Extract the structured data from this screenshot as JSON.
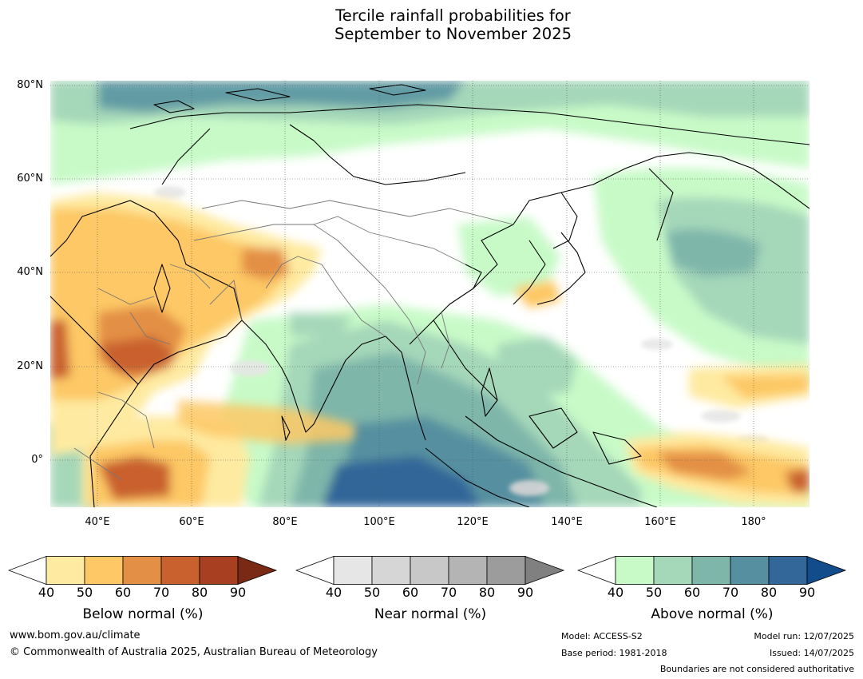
{
  "title": {
    "line1": "Tercile rainfall probabilities for",
    "line2": "September to November 2025"
  },
  "map": {
    "lat_ticks": [
      "80°N",
      "60°N",
      "40°N",
      "20°N",
      "0°"
    ],
    "lon_ticks": [
      "40°E",
      "60°E",
      "80°E",
      "100°E",
      "120°E",
      "140°E",
      "160°E",
      "180°"
    ]
  },
  "colorbars": [
    {
      "label": "Below normal (%)",
      "ticks": [
        "40",
        "50",
        "60",
        "70",
        "80",
        "90"
      ],
      "colors": [
        "#ffffff",
        "#feeaa0",
        "#fdc865",
        "#e38f45",
        "#c9612f",
        "#a83f20",
        "#7a2a14"
      ]
    },
    {
      "label": "Near normal (%)",
      "ticks": [
        "40",
        "50",
        "60",
        "70",
        "80",
        "90"
      ],
      "colors": [
        "#ffffff",
        "#e6e6e6",
        "#d6d6d6",
        "#c8c8c8",
        "#b4b4b4",
        "#9c9c9c",
        "#808080"
      ]
    },
    {
      "label": "Above normal (%)",
      "ticks": [
        "40",
        "50",
        "60",
        "70",
        "80",
        "90"
      ],
      "colors": [
        "#ffffff",
        "#c8fac8",
        "#a5d7b9",
        "#7eb6aa",
        "#5690a0",
        "#336699",
        "#124c8a"
      ]
    }
  ],
  "footer": {
    "website": "www.bom.gov.au/climate",
    "copyright": "© Commonwealth of Australia 2025, Australian Bureau of Meteorology",
    "model": "Model: ACCESS-S2",
    "base_period": "Base period: 1981-2018",
    "model_run": "Model run: 12/07/2025",
    "issued": "Issued: 14/07/2025",
    "disclaimer": "Boundaries are not considered authoritative"
  }
}
